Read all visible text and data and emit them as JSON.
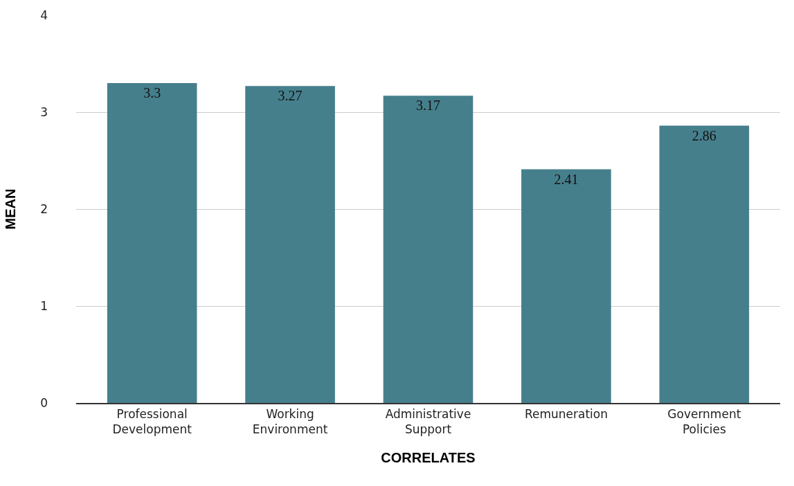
{
  "chart_data": {
    "type": "bar",
    "xlabel": "CORRELATES",
    "ylabel": "MEAN",
    "categories": [
      "Professional Development",
      "Working Environment",
      "Administrative Support",
      "Remuneration",
      "Government Policies"
    ],
    "values": [
      3.3,
      3.27,
      3.17,
      2.41,
      2.86
    ],
    "color": "#467f8c",
    "ylim": [
      0,
      4
    ],
    "yticks": [
      0,
      1,
      2,
      3,
      4
    ],
    "grid": "y",
    "data_labels": true
  }
}
